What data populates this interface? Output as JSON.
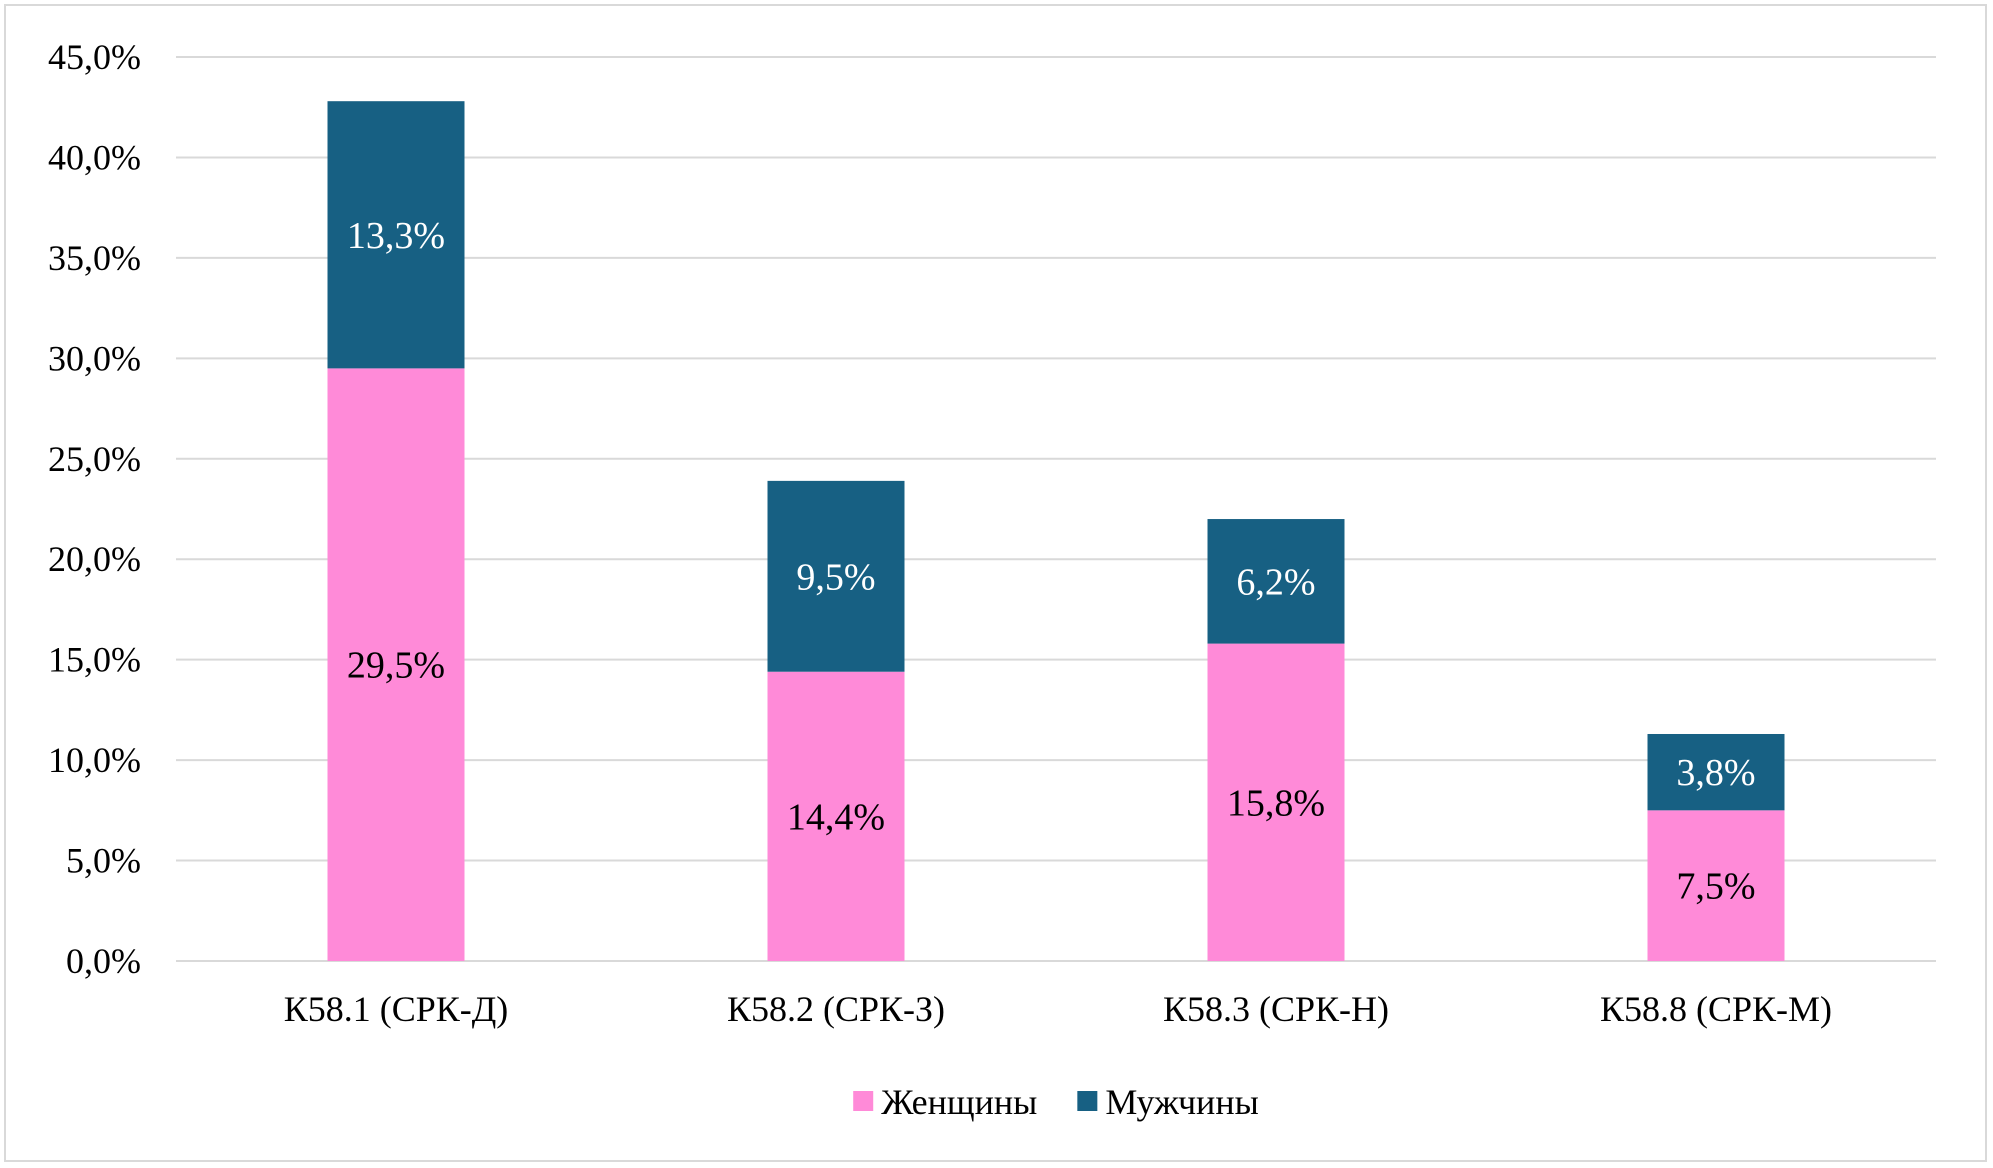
{
  "chart_data": {
    "type": "bar",
    "stacked": true,
    "categories": [
      "К58.1 (СРК-Д)",
      "К58.2 (СРК-З)",
      "К58.3 (СРК-Н)",
      "К58.8 (СРК-М)"
    ],
    "series": [
      {
        "name": "Женщины",
        "color": "#ff8ad8",
        "label_color": "#000000",
        "values": [
          29.5,
          14.4,
          15.8,
          7.5
        ],
        "labels": [
          "29,5%",
          "14,4%",
          "15,8%",
          "7,5%"
        ]
      },
      {
        "name": "Мужчины",
        "color": "#176083",
        "label_color": "#ffffff",
        "values": [
          13.3,
          9.5,
          6.2,
          3.8
        ],
        "labels": [
          "13,3%",
          "9,5%",
          "6,2%",
          "3,8%"
        ]
      }
    ],
    "y_ticks": [
      0,
      5,
      10,
      15,
      20,
      25,
      30,
      35,
      40,
      45
    ],
    "y_tick_labels": [
      "0,0%",
      "5,0%",
      "10,0%",
      "15,0%",
      "20,0%",
      "25,0%",
      "30,0%",
      "35,0%",
      "40,0%",
      "45,0%"
    ],
    "ylim": [
      0,
      45
    ],
    "grid": true,
    "gridline_color": "#d9d9d9",
    "legend_position": "bottom"
  }
}
